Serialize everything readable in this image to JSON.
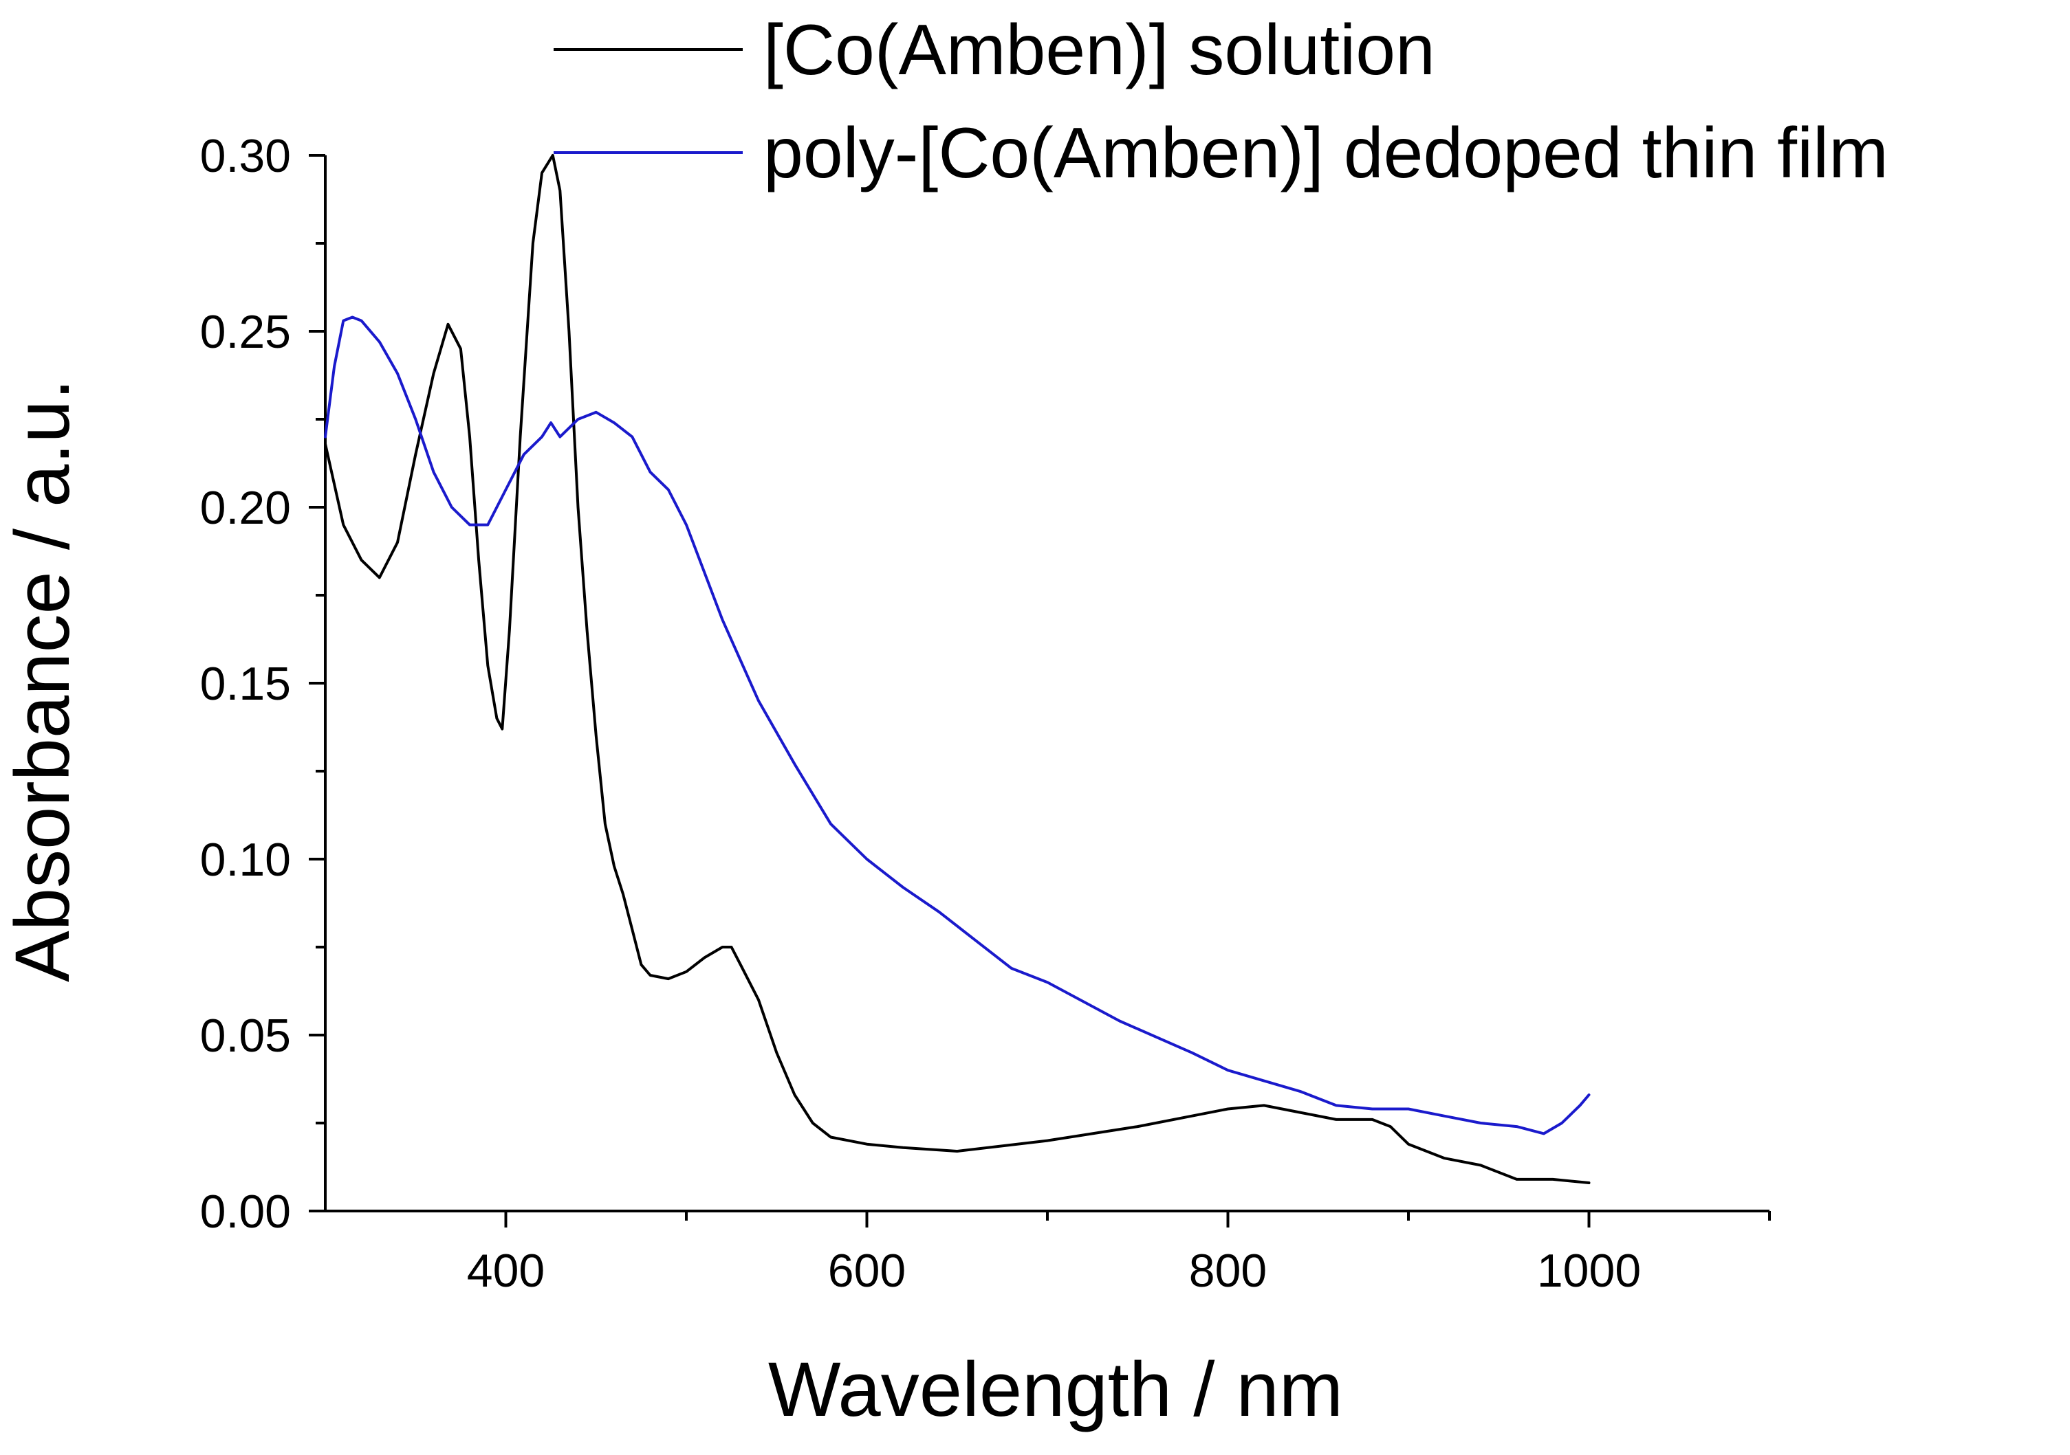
{
  "chart_data": {
    "type": "line",
    "title": "",
    "xlabel": "Wavelength / nm",
    "ylabel": "Absorbance / a.u.",
    "xlim": [
      300,
      1100
    ],
    "ylim": [
      0,
      0.3
    ],
    "x_ticks": [
      400,
      600,
      800,
      1000
    ],
    "x_tick_labels": [
      "400",
      "600",
      "800",
      "1000"
    ],
    "x_minor_step": 100,
    "y_ticks": [
      0,
      0.05,
      0.1,
      0.15,
      0.2,
      0.25,
      0.3
    ],
    "y_tick_labels": [
      "0.00",
      "0.05",
      "0.10",
      "0.15",
      "0.20",
      "0.25",
      "0.30"
    ],
    "y_minor_step": 0.025,
    "grid": false,
    "legend_position": "top-right",
    "series": [
      {
        "name": "[Co(Amben)] solution",
        "color": "#000000",
        "x": [
          300,
          310,
          320,
          330,
          340,
          350,
          360,
          368,
          375,
          380,
          385,
          390,
          395,
          398,
          402,
          408,
          415,
          420,
          426,
          430,
          435,
          440,
          445,
          450,
          455,
          460,
          465,
          470,
          475,
          480,
          490,
          500,
          510,
          520,
          525,
          530,
          540,
          550,
          560,
          570,
          580,
          600,
          620,
          650,
          700,
          750,
          800,
          820,
          840,
          860,
          880,
          890,
          900,
          920,
          940,
          960,
          980,
          1000
        ],
        "y": [
          0.218,
          0.195,
          0.185,
          0.18,
          0.19,
          0.215,
          0.238,
          0.252,
          0.245,
          0.22,
          0.185,
          0.155,
          0.14,
          0.137,
          0.165,
          0.22,
          0.275,
          0.295,
          0.3,
          0.29,
          0.25,
          0.2,
          0.165,
          0.135,
          0.11,
          0.098,
          0.09,
          0.08,
          0.07,
          0.067,
          0.066,
          0.068,
          0.072,
          0.075,
          0.075,
          0.07,
          0.06,
          0.045,
          0.033,
          0.025,
          0.021,
          0.019,
          0.018,
          0.017,
          0.02,
          0.024,
          0.029,
          0.03,
          0.028,
          0.026,
          0.026,
          0.024,
          0.019,
          0.015,
          0.013,
          0.009,
          0.009,
          0.008
        ]
      },
      {
        "name": "poly-[Co(Amben)] dedoped thin film",
        "color": "#1a1acc",
        "x": [
          300,
          305,
          310,
          315,
          320,
          330,
          340,
          350,
          360,
          370,
          380,
          390,
          400,
          410,
          420,
          425,
          430,
          440,
          450,
          460,
          470,
          480,
          490,
          500,
          520,
          540,
          560,
          580,
          600,
          620,
          640,
          660,
          680,
          700,
          740,
          780,
          800,
          820,
          840,
          860,
          880,
          900,
          920,
          940,
          960,
          975,
          985,
          995,
          1000
        ],
        "y": [
          0.22,
          0.24,
          0.253,
          0.254,
          0.253,
          0.247,
          0.238,
          0.225,
          0.21,
          0.2,
          0.195,
          0.195,
          0.205,
          0.215,
          0.22,
          0.224,
          0.22,
          0.225,
          0.227,
          0.224,
          0.22,
          0.21,
          0.205,
          0.195,
          0.168,
          0.145,
          0.127,
          0.11,
          0.1,
          0.092,
          0.085,
          0.077,
          0.069,
          0.065,
          0.054,
          0.045,
          0.04,
          0.037,
          0.034,
          0.03,
          0.029,
          0.029,
          0.027,
          0.025,
          0.024,
          0.022,
          0.025,
          0.03,
          0.033
        ]
      }
    ]
  }
}
